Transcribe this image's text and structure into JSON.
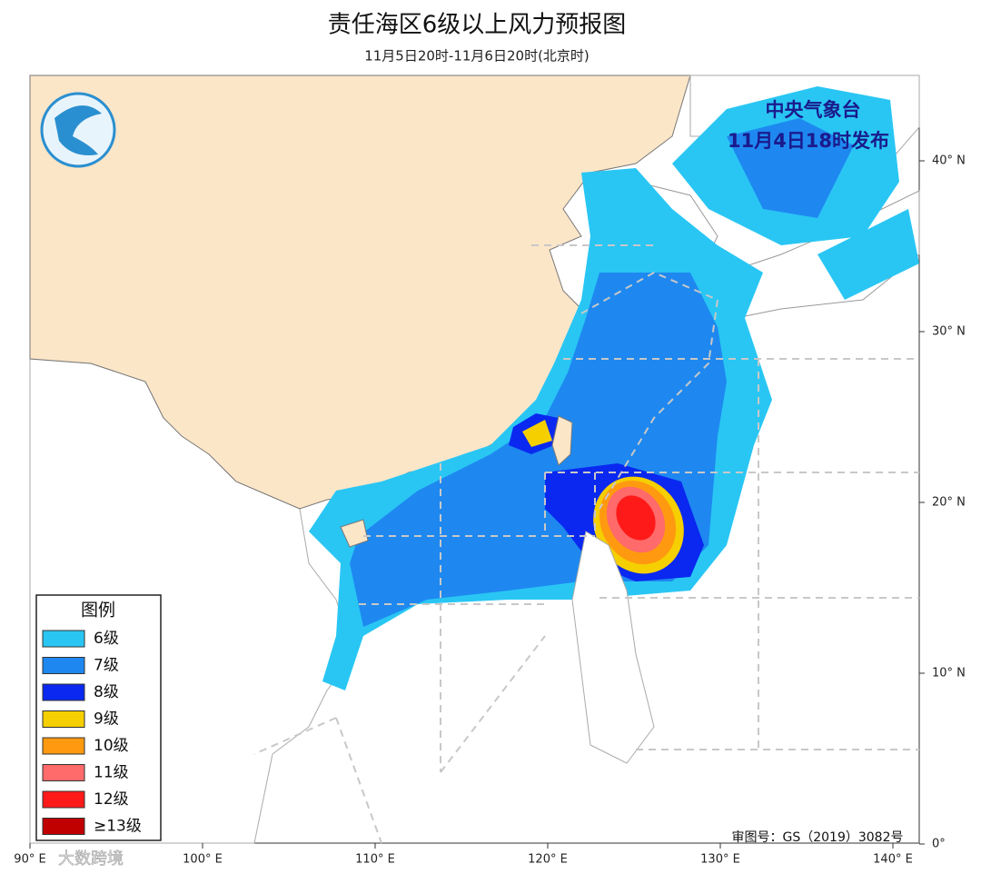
{
  "header": {
    "title": "责任海区6级以上风力预报图",
    "subtitle": "11月5日20时-11月6日20时(北京时)"
  },
  "issuer": {
    "name": "中央气象台",
    "time": "11月4日18时发布"
  },
  "legend": {
    "title": "图例",
    "items": [
      {
        "label": "6级",
        "color": "#29c6f4"
      },
      {
        "label": "7级",
        "color": "#1e88f0"
      },
      {
        "label": "8级",
        "color": "#0a28f0"
      },
      {
        "label": "9级",
        "color": "#f5cf00"
      },
      {
        "label": "10级",
        "color": "#ff9a10"
      },
      {
        "label": "11级",
        "color": "#ff6a6a"
      },
      {
        "label": "12级",
        "color": "#ff1a1a"
      },
      {
        "label": "≥13级",
        "color": "#c00000"
      }
    ]
  },
  "axes": {
    "latitude": [
      "40° N",
      "30° N",
      "20° N",
      "10° N",
      "0°"
    ],
    "longitude": [
      "90° E",
      "100° E",
      "110° E",
      "120° E",
      "130° E",
      "140° E"
    ]
  },
  "approval": "审图号：GS（2019）3082号",
  "watermark": "大数跨境"
}
